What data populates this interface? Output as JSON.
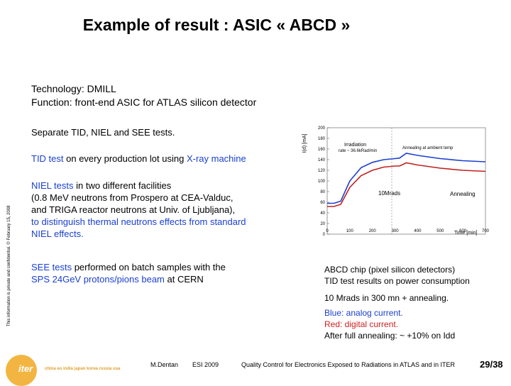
{
  "title": "Example of result : ASIC « ABCD »",
  "technology": {
    "line1": "Technology: DMILL",
    "line2": "Function: front-end ASIC for ATLAS silicon detector"
  },
  "paragraphs": {
    "separate": "Separate TID, NIEL and SEE tests.",
    "tid": {
      "pre": "TID test",
      "post": " on every production lot using ",
      "hl": "X-ray machine"
    },
    "niel": {
      "l1_hl": "NIEL tests",
      "l1_post": " in two different facilities",
      "l2": "(0.8 MeV neutrons from Prospero at CEA-Valduc,",
      "l3": "and TRIGA reactor neutrons at Univ. of Ljubljana),",
      "l4_hl": "to distinguish thermal neutrons effects from standard",
      "l5_hl": "NIEL effects."
    },
    "see": {
      "l1_hl": "SEE tests",
      "l1_post": " performed on batch samples with the",
      "l2_pre": "SPS 24GeV protons/pions beam",
      "l2_post": "  at CERN"
    }
  },
  "side_text": "This information is private and confidential.  © February 15, 2008",
  "plot": {
    "ylabel": "I(d) [mA]",
    "xlabel": "Time [min]",
    "yticks": [
      "200",
      "180",
      "160",
      "140",
      "120",
      "100",
      "80",
      "60",
      "40",
      "20",
      "0"
    ],
    "xticks": [
      "0",
      "100",
      "200",
      "300",
      "400",
      "500",
      "600",
      "700"
    ],
    "ann_irr": "Irradiation",
    "ann_rate": "rate ~ 36.6kRad/min",
    "ann_anneal_ambient": "Annealing at ambient temp",
    "ann_10mrads": "10Mrads",
    "ann_annealing": "Annealing",
    "colors": {
      "analog": "#1a3fd0",
      "digital": "#c02020"
    }
  },
  "caption": {
    "l1": "ABCD chip (pixel silicon detectors)",
    "l2": "TID test results on power consumption",
    "l3": "10 Mrads in 300 mn + annealing.",
    "blue": "Blue: analog current.",
    "red": "Red: digital current.",
    "after": "After full annealing: ~ +10% on Idd"
  },
  "footer": {
    "author": "M.Dentan",
    "event": "ESI 2009",
    "talk": "Quality Control for Electronics Exposed to Radiations in ATLAS and in ITER",
    "page": "29/38"
  },
  "logo": {
    "name": "iter",
    "countries": "china eu india japan korea russia usa"
  }
}
